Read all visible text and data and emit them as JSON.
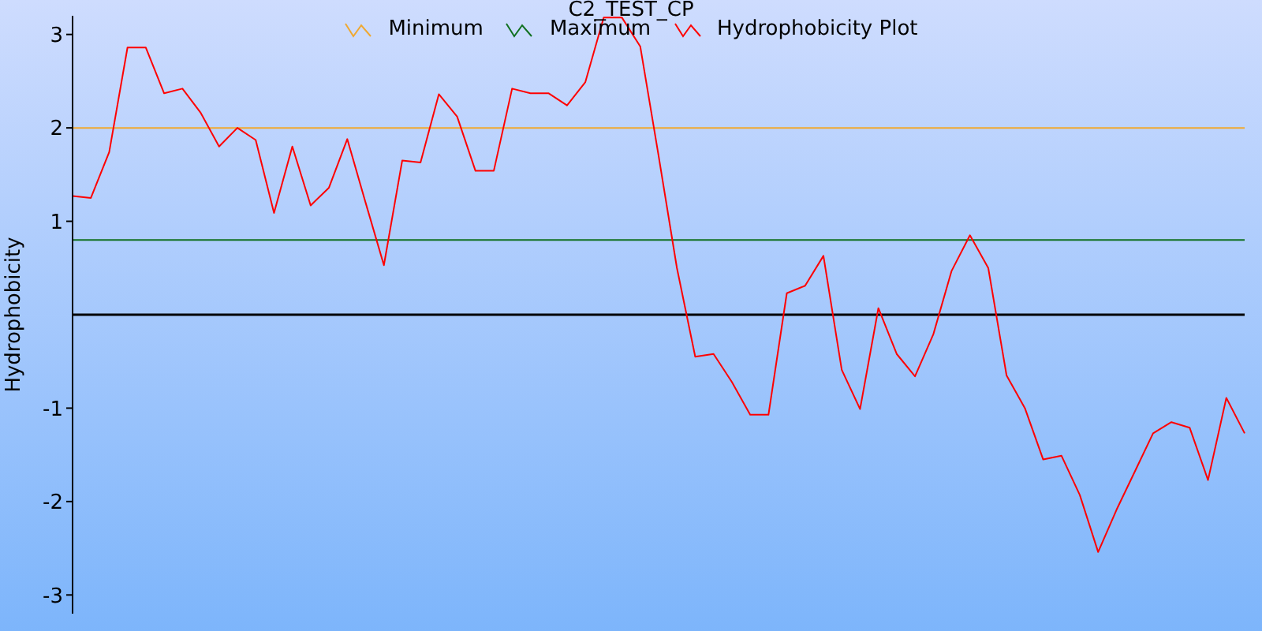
{
  "chart_data": {
    "type": "line",
    "title": "C2_TEST_CP",
    "ylabel": "Hydrophobicity",
    "legend": "top",
    "marker": "none",
    "categories": [
      null,
      null,
      null,
      null,
      null,
      null,
      null,
      null,
      null,
      null,
      null,
      null,
      null,
      null,
      null,
      null,
      null,
      null,
      null,
      null,
      null,
      null,
      null,
      null,
      null,
      null,
      null,
      null,
      null,
      null,
      null,
      null,
      null,
      null,
      null,
      null,
      null,
      null,
      null,
      null,
      null,
      null,
      null,
      null,
      null,
      null,
      null,
      null,
      null,
      null,
      null,
      null,
      null,
      null,
      null,
      null,
      null,
      null,
      null,
      null,
      null,
      null,
      null,
      null,
      null
    ],
    "ref_lines": [
      {
        "axis": "y",
        "value": 0,
        "color": "#000000"
      }
    ],
    "ylim": [
      -3.2,
      3.2
    ],
    "yticks": [
      3,
      2,
      1,
      -1,
      -2,
      -3
    ],
    "series": [
      {
        "name": "Minimum",
        "color": "#f0a830",
        "values": [
          2,
          2,
          2,
          2,
          2,
          2,
          2,
          2,
          2,
          2,
          2,
          2,
          2,
          2,
          2,
          2,
          2,
          2,
          2,
          2,
          2,
          2,
          2,
          2,
          2,
          2,
          2,
          2,
          2,
          2,
          2,
          2,
          2,
          2,
          2,
          2,
          2,
          2,
          2,
          2,
          2,
          2,
          2,
          2,
          2,
          2,
          2,
          2,
          2,
          2,
          2,
          2,
          2,
          2,
          2,
          2,
          2,
          2,
          2,
          2,
          2,
          2,
          2,
          2,
          2
        ]
      },
      {
        "name": "Maximum",
        "color": "#107020",
        "values": [
          0.8,
          0.8,
          0.8,
          0.8,
          0.8,
          0.8,
          0.8,
          0.8,
          0.8,
          0.8,
          0.8,
          0.8,
          0.8,
          0.8,
          0.8,
          0.8,
          0.8,
          0.8,
          0.8,
          0.8,
          0.8,
          0.8,
          0.8,
          0.8,
          0.8,
          0.8,
          0.8,
          0.8,
          0.8,
          0.8,
          0.8,
          0.8,
          0.8,
          0.8,
          0.8,
          0.8,
          0.8,
          0.8,
          0.8,
          0.8,
          0.8,
          0.8,
          0.8,
          0.8,
          0.8,
          0.8,
          0.8,
          0.8,
          0.8,
          0.8,
          0.8,
          0.8,
          0.8,
          0.8,
          0.8,
          0.8,
          0.8,
          0.8,
          0.8,
          0.8,
          0.8,
          0.8,
          0.8,
          0.8,
          0.8
        ]
      },
      {
        "name": "Hydrophobicity Plot",
        "color": "#ff0000",
        "values": [
          1.27,
          1.25,
          1.74,
          2.86,
          2.86,
          2.37,
          2.42,
          2.16,
          1.8,
          2.0,
          1.87,
          1.09,
          1.8,
          1.17,
          1.36,
          1.88,
          1.2,
          0.53,
          1.65,
          1.63,
          2.36,
          2.12,
          1.54,
          1.54,
          2.42,
          2.37,
          2.37,
          2.24,
          2.49,
          3.18,
          3.18,
          2.87,
          1.7,
          0.5,
          -0.45,
          -0.42,
          -0.72,
          -1.07,
          -1.07,
          0.23,
          0.31,
          0.63,
          -0.59,
          -1.01,
          0.07,
          -0.42,
          -0.66,
          -0.21,
          0.47,
          0.85,
          0.5,
          -0.65,
          -1.0,
          -1.55,
          -1.51,
          -1.93,
          -2.54,
          -2.09,
          -1.68,
          -1.27,
          -1.15,
          -1.21,
          -1.77,
          -0.89,
          -1.27
        ]
      }
    ]
  }
}
